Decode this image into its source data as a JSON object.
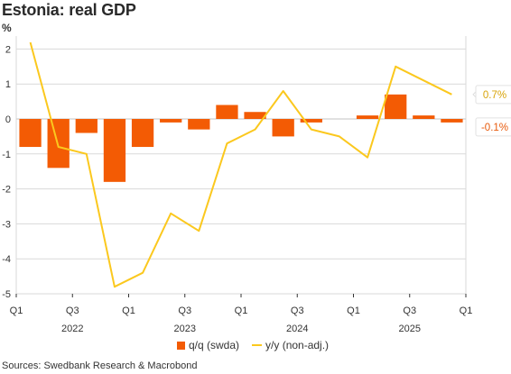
{
  "title": "Estonia: real GDP",
  "unit": "%",
  "source": "Sources: Swedbank Research & Macrobond",
  "colors": {
    "bar": "#f35b04",
    "line": "#fbc81e",
    "grid": "#d9d9d9",
    "zero": "#cfcfcf",
    "axis": "#333333"
  },
  "chart_data": {
    "type": "bar",
    "x_ticks": [
      "Q1",
      "Q3",
      "Q1",
      "Q3",
      "Q1",
      "Q3",
      "Q1",
      "Q3",
      "Q1"
    ],
    "year_labels": [
      "2022",
      "2023",
      "2024",
      "2025"
    ],
    "y_ticks": [
      "2",
      "1",
      "0",
      "-1",
      "-2",
      "-3",
      "-4",
      "-5"
    ],
    "ylim": [
      -5,
      2.2
    ],
    "periods": [
      "2022Q1",
      "2022Q2",
      "2022Q3",
      "2022Q4",
      "2023Q1",
      "2023Q2",
      "2023Q3",
      "2023Q4",
      "2024Q1",
      "2024Q2",
      "2024Q3",
      "2024Q4",
      "2025Q1",
      "2025Q2",
      "2025Q3",
      "2025Q4"
    ],
    "series": [
      {
        "name": "q/q (swda)",
        "type": "bar",
        "values": [
          -0.8,
          -1.4,
          -0.4,
          -1.8,
          -0.8,
          -0.1,
          -0.3,
          0.4,
          0.2,
          -0.5,
          -0.1,
          0.0,
          0.1,
          0.7,
          0.1,
          -0.1
        ]
      },
      {
        "name": "y/y (non-adj.)",
        "type": "line",
        "values": [
          2.2,
          -0.8,
          -1.0,
          -4.8,
          -4.4,
          -2.7,
          -3.2,
          -0.7,
          -0.3,
          0.8,
          -0.3,
          -0.5,
          -1.1,
          1.5,
          1.1,
          0.7
        ]
      }
    ],
    "end_labels": [
      "0.7%",
      "-0.1%"
    ],
    "grid": true,
    "legend": "bottom"
  }
}
